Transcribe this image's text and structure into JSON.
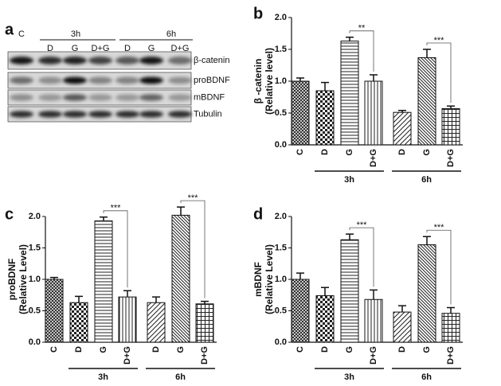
{
  "blot": {
    "panel_label": "a",
    "control": "C",
    "time_labels": [
      "3h",
      "6h"
    ],
    "conditions": [
      "D",
      "G",
      "D+G",
      "D",
      "G",
      "D+G"
    ],
    "bands": [
      "β-catenin",
      "proBDNF",
      "mBDNF",
      "Tubulin"
    ]
  },
  "chart_data": [
    {
      "type": "bar",
      "panel_label": "b",
      "ylabel": "β -catenin",
      "ylabel2": "(Relative level)",
      "categories": [
        "C",
        "D",
        "G",
        "D+G",
        "D",
        "G",
        "D+G"
      ],
      "groups": [
        "3h",
        "6h"
      ],
      "values": [
        1.0,
        0.85,
        1.63,
        1.0,
        0.51,
        1.37,
        0.57
      ],
      "errors": [
        0.05,
        0.13,
        0.06,
        0.1,
        0.03,
        0.13,
        0.04
      ],
      "significance": [
        "**",
        "***"
      ],
      "ylim": [
        0,
        2
      ],
      "yticks": [
        {
          "value": 0,
          "label": "0.0"
        },
        {
          "value": 0.5,
          "label": "0.5"
        },
        {
          "value": 1,
          "label": "1.0"
        },
        {
          "value": 1.5,
          "label": "1.5"
        },
        {
          "value": 2,
          "label": "2.0"
        }
      ]
    },
    {
      "type": "bar",
      "panel_label": "c",
      "ylabel": "proBDNF",
      "ylabel2": "(Relative Level)",
      "categories": [
        "C",
        "D",
        "G",
        "D+G",
        "D",
        "G",
        "D+G"
      ],
      "groups": [
        "3h",
        "6h"
      ],
      "values": [
        1.0,
        0.63,
        1.93,
        0.72,
        0.63,
        2.02,
        0.61
      ],
      "errors": [
        0.03,
        0.1,
        0.06,
        0.1,
        0.09,
        0.13,
        0.04
      ],
      "significance": [
        "***",
        "***"
      ],
      "ylim": [
        0,
        2
      ],
      "yticks": [
        {
          "value": 0,
          "label": "0.0"
        },
        {
          "value": 0.5,
          "label": "0.5"
        },
        {
          "value": 1,
          "label": "1.0"
        },
        {
          "value": 1.5,
          "label": "1.5"
        },
        {
          "value": 2,
          "label": "2.0"
        }
      ]
    },
    {
      "type": "bar",
      "panel_label": "d",
      "ylabel": "mBDNF",
      "ylabel2": "(Relative Level)",
      "categories": [
        "C",
        "D",
        "G",
        "D+G",
        "D",
        "G",
        "D+G"
      ],
      "groups": [
        "3h",
        "6h"
      ],
      "values": [
        1.0,
        0.74,
        1.63,
        0.68,
        0.48,
        1.55,
        0.46
      ],
      "errors": [
        0.1,
        0.13,
        0.09,
        0.15,
        0.1,
        0.13,
        0.09
      ],
      "significance": [
        "***",
        "***"
      ],
      "ylim": [
        0,
        2
      ],
      "yticks": [
        {
          "value": 0,
          "label": "0.0"
        },
        {
          "value": 0.5,
          "label": "0.5"
        },
        {
          "value": 1,
          "label": "1.0"
        },
        {
          "value": 1.5,
          "label": "1.5"
        },
        {
          "value": 2,
          "label": "2.0"
        }
      ]
    }
  ]
}
